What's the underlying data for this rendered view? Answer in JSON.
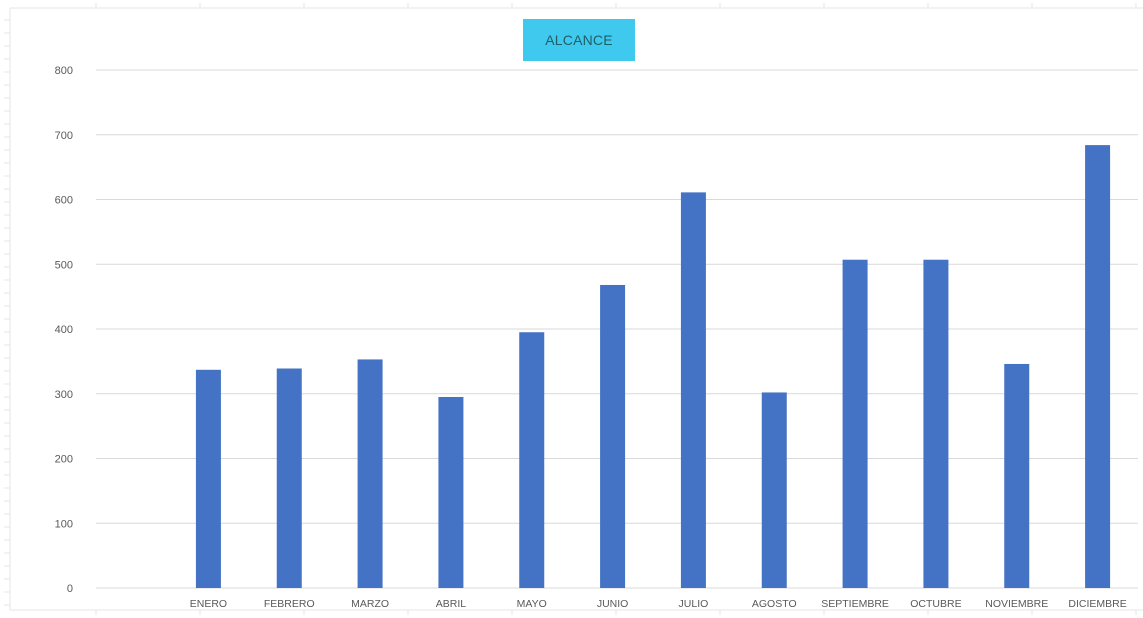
{
  "chart_data": {
    "type": "bar",
    "title": "ALCANCE",
    "categories": [
      "ENERO",
      "FEBRERO",
      "MARZO",
      "ABRIL",
      "MAYO",
      "JUNIO",
      "JULIO",
      "AGOSTO",
      "SEPTIEMBRE",
      "OCTUBRE",
      "NOVIEMBRE",
      "DICIEMBRE"
    ],
    "series": [
      {
        "values": [
          337,
          339,
          353,
          295,
          395,
          468,
          611,
          302,
          507,
          507,
          346,
          684
        ],
        "color": "#4472c4"
      }
    ],
    "xlabel": "",
    "ylabel": "",
    "ylim": [
      0,
      800
    ],
    "yticks": [
      0,
      100,
      200,
      300,
      400,
      500,
      600,
      700,
      800
    ],
    "grid": true,
    "legend": "none"
  },
  "colors": {
    "bar": "#4472c4",
    "title_bg": "#3fc9ef",
    "gridline": "#d9d9d9",
    "tick_text": "#595959"
  }
}
